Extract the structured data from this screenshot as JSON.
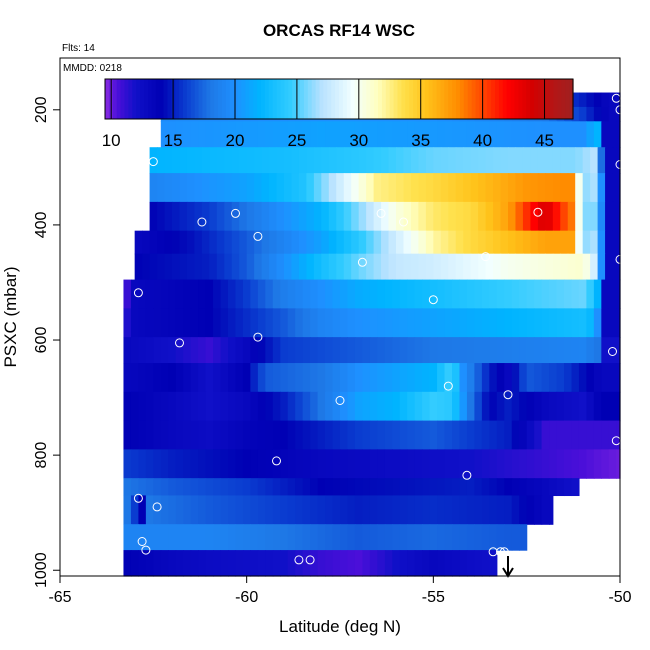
{
  "chart_data": {
    "type": "heatmap",
    "title": "ORCAS RF14 WSC",
    "annotations": {
      "flights": "Flts: 14",
      "date": "MMDD: 0218"
    },
    "xlabel": "Latitude (deg N)",
    "ylabel": "PSXC (mbar)",
    "xlim": [
      -65,
      -50
    ],
    "ylim": [
      1010,
      110
    ],
    "y_reversed": true,
    "x_ticks": [
      -65,
      -60,
      -55,
      -50
    ],
    "y_ticks": [
      200,
      400,
      600,
      800,
      1000
    ],
    "x_tick_labels": [
      "-65",
      "-60",
      "-55",
      "-50"
    ],
    "y_tick_labels": [
      "200",
      "400",
      "600",
      "800",
      "1000"
    ],
    "colorbar": {
      "range": [
        9.5,
        47.3
      ],
      "ticks": [
        10,
        15,
        20,
        25,
        30,
        35,
        40,
        45
      ],
      "tick_labels": [
        "10",
        "15",
        "20",
        "25",
        "30",
        "35",
        "40",
        "45"
      ],
      "stops": [
        [
          9.5,
          "#8a2be2"
        ],
        [
          10.5,
          "#4b0fd9"
        ],
        [
          12,
          "#1010c8"
        ],
        [
          14,
          "#0000b4"
        ],
        [
          16,
          "#0a3cd0"
        ],
        [
          18,
          "#1e78e6"
        ],
        [
          20,
          "#1e90ff"
        ],
        [
          22,
          "#00b4ff"
        ],
        [
          24.5,
          "#33ccff"
        ],
        [
          27,
          "#b8e2ff"
        ],
        [
          29.5,
          "#f2ffff"
        ],
        [
          31.5,
          "#ffffc0"
        ],
        [
          33.5,
          "#ffe14d"
        ],
        [
          35.5,
          "#ffc21a"
        ],
        [
          38,
          "#ff8c00"
        ],
        [
          40,
          "#ff4500"
        ],
        [
          42,
          "#ff0000"
        ],
        [
          44,
          "#d40000"
        ],
        [
          46,
          "#b01818"
        ],
        [
          47.3,
          "#a02020"
        ]
      ]
    },
    "rows": [
      {
        "p": [
          170,
          195
        ],
        "x": [
          -62.1,
          -50
        ],
        "v": [
          [
            -62.1,
            19
          ],
          [
            -58,
            19.5
          ],
          [
            -55,
            19
          ],
          [
            -52,
            17
          ],
          [
            -51,
            15
          ],
          [
            -50.3,
            13
          ]
        ]
      },
      {
        "p": [
          195,
          220
        ],
        "x": [
          -62.3,
          -50
        ],
        "v": [
          [
            -62.3,
            19.5
          ],
          [
            -58,
            20
          ],
          [
            -55,
            20
          ],
          [
            -52,
            18
          ],
          [
            -51,
            16
          ],
          [
            -50.3,
            13
          ]
        ]
      },
      {
        "p": [
          220,
          265
        ],
        "x": [
          -62.3,
          -50
        ],
        "v": [
          [
            -62.3,
            20
          ],
          [
            -58,
            21
          ],
          [
            -55,
            20.5
          ],
          [
            -52,
            20
          ],
          [
            -51,
            20
          ],
          [
            -50.6,
            22
          ],
          [
            -50.4,
            13
          ]
        ]
      },
      {
        "p": [
          265,
          310
        ],
        "x": [
          -62.6,
          -50
        ],
        "v": [
          [
            -62.6,
            22
          ],
          [
            -59,
            23
          ],
          [
            -57,
            24
          ],
          [
            -55,
            25.5
          ],
          [
            -53,
            26
          ],
          [
            -51.2,
            26
          ],
          [
            -50.7,
            27
          ],
          [
            -50.4,
            13
          ]
        ]
      },
      {
        "p": [
          310,
          360
        ],
        "x": [
          -62.6,
          -50
        ],
        "v": [
          [
            -62.6,
            19
          ],
          [
            -60,
            21
          ],
          [
            -58.5,
            23.5
          ],
          [
            -57.5,
            28
          ],
          [
            -56.5,
            32.5
          ],
          [
            -55,
            34
          ],
          [
            -53.5,
            36
          ],
          [
            -52.5,
            37.5
          ],
          [
            -51.5,
            38
          ],
          [
            -51.2,
            38
          ],
          [
            -51.05,
            26
          ],
          [
            -50.6,
            27
          ],
          [
            -50.4,
            13
          ]
        ]
      },
      {
        "p": [
          360,
          410
        ],
        "x": [
          -62.6,
          -50
        ],
        "v": [
          [
            -62.6,
            14
          ],
          [
            -61,
            16
          ],
          [
            -59.5,
            19
          ],
          [
            -58,
            22
          ],
          [
            -57,
            26
          ],
          [
            -56,
            30.5
          ],
          [
            -55,
            33
          ],
          [
            -54,
            34
          ],
          [
            -53,
            37
          ],
          [
            -52.6,
            40
          ],
          [
            -52,
            44
          ],
          [
            -51.5,
            40
          ],
          [
            -51.2,
            38
          ],
          [
            -51.05,
            26
          ],
          [
            -50.6,
            26
          ],
          [
            -50.4,
            13
          ]
        ]
      },
      {
        "p": [
          410,
          450
        ],
        "x": [
          -63,
          -50
        ],
        "v": [
          [
            -63,
            13
          ],
          [
            -61.5,
            14.5
          ],
          [
            -60,
            17
          ],
          [
            -58,
            21
          ],
          [
            -57,
            24
          ],
          [
            -56,
            28
          ],
          [
            -55,
            32
          ],
          [
            -54,
            34
          ],
          [
            -53,
            35.5
          ],
          [
            -52,
            37
          ],
          [
            -51.2,
            37
          ],
          [
            -51.05,
            26
          ],
          [
            -50.6,
            27
          ],
          [
            -50.4,
            13
          ]
        ]
      },
      {
        "p": [
          450,
          495
        ],
        "x": [
          -63,
          -50
        ],
        "v": [
          [
            -63,
            14
          ],
          [
            -61,
            15
          ],
          [
            -60,
            17
          ],
          [
            -59,
            20
          ],
          [
            -58,
            23
          ],
          [
            -57,
            25.5
          ],
          [
            -56,
            27.5
          ],
          [
            -55,
            28
          ],
          [
            -54,
            29
          ],
          [
            -53,
            30
          ],
          [
            -51,
            31
          ],
          [
            -50.85,
            30
          ],
          [
            -50.6,
            27
          ],
          [
            -50.4,
            13
          ]
        ]
      },
      {
        "p": [
          495,
          545
        ],
        "x": [
          -63.3,
          -50
        ],
        "v": [
          [
            -63.3,
            10
          ],
          [
            -63,
            13
          ],
          [
            -61,
            14
          ],
          [
            -60,
            16
          ],
          [
            -59,
            18.5
          ],
          [
            -58,
            20
          ],
          [
            -57,
            21.5
          ],
          [
            -55,
            23
          ],
          [
            -53,
            24.5
          ],
          [
            -51,
            25.5
          ],
          [
            -50.85,
            25
          ],
          [
            -50.6,
            22
          ],
          [
            -50.4,
            13
          ]
        ]
      },
      {
        "p": [
          545,
          595
        ],
        "x": [
          -63.3,
          -50
        ],
        "v": [
          [
            -63.3,
            11
          ],
          [
            -63,
            13
          ],
          [
            -61,
            14
          ],
          [
            -60,
            15.5
          ],
          [
            -59,
            17
          ],
          [
            -58,
            19
          ],
          [
            -57,
            20
          ],
          [
            -55,
            21
          ],
          [
            -53,
            22
          ],
          [
            -51,
            23
          ],
          [
            -50.85,
            23
          ],
          [
            -50.6,
            20
          ],
          [
            -50.4,
            13
          ]
        ]
      },
      {
        "p": [
          595,
          640
        ],
        "x": [
          -63.3,
          -50
        ],
        "v": [
          [
            -63.3,
            13
          ],
          [
            -62,
            12
          ],
          [
            -61,
            11
          ],
          [
            -60,
            13
          ],
          [
            -59,
            16
          ],
          [
            -57,
            17
          ],
          [
            -55,
            18
          ],
          [
            -53,
            18.5
          ],
          [
            -51,
            19
          ],
          [
            -50.6,
            18
          ],
          [
            -50.4,
            12
          ]
        ]
      },
      {
        "p": [
          640,
          690
        ],
        "x": [
          -63.3,
          -50
        ],
        "v": [
          [
            -63.3,
            13
          ],
          [
            -62,
            14
          ],
          [
            -61,
            12
          ],
          [
            -60,
            14
          ],
          [
            -59.5,
            17
          ],
          [
            -58,
            18
          ],
          [
            -57,
            20
          ],
          [
            -56,
            21
          ],
          [
            -55,
            22
          ],
          [
            -54.5,
            25
          ],
          [
            -54.2,
            20
          ],
          [
            -53.5,
            15
          ],
          [
            -53,
            13
          ],
          [
            -52.5,
            17
          ],
          [
            -51.5,
            16
          ],
          [
            -50.5,
            13
          ]
        ]
      },
      {
        "p": [
          690,
          740
        ],
        "x": [
          -63.3,
          -50
        ],
        "v": [
          [
            -63.3,
            14
          ],
          [
            -62,
            13
          ],
          [
            -61,
            12
          ],
          [
            -60,
            13
          ],
          [
            -59,
            15
          ],
          [
            -58,
            18
          ],
          [
            -57,
            21
          ],
          [
            -56,
            22
          ],
          [
            -55,
            24.5
          ],
          [
            -54.5,
            24
          ],
          [
            -54,
            18
          ],
          [
            -53.5,
            14
          ],
          [
            -53,
            15
          ],
          [
            -52,
            13
          ],
          [
            -51,
            12
          ],
          [
            -50.5,
            14
          ]
        ]
      },
      {
        "p": [
          740,
          790
        ],
        "x": [
          -63.3,
          -50
        ],
        "v": [
          [
            -63.3,
            14
          ],
          [
            -62,
            13
          ],
          [
            -61,
            12.5
          ],
          [
            -60,
            13.5
          ],
          [
            -59,
            14
          ],
          [
            -57,
            16
          ],
          [
            -55,
            17
          ],
          [
            -53,
            15
          ],
          [
            -52,
            11
          ],
          [
            -51,
            11
          ],
          [
            -50.2,
            11
          ]
        ]
      },
      {
        "p": [
          790,
          840
        ],
        "x": [
          -63.3,
          -50
        ],
        "v": [
          [
            -63.3,
            16
          ],
          [
            -62,
            15
          ],
          [
            -60,
            14
          ],
          [
            -58,
            13
          ],
          [
            -56,
            12.5
          ],
          [
            -54,
            12
          ],
          [
            -52,
            11
          ],
          [
            -51,
            10.5
          ],
          [
            -50,
            10
          ]
        ]
      },
      {
        "p": [
          840,
          870
        ],
        "x": [
          -63.3,
          -51.1
        ],
        "v": [
          [
            -63.3,
            18
          ],
          [
            -62,
            17
          ],
          [
            -60,
            16
          ],
          [
            -58,
            14
          ],
          [
            -56,
            14.5
          ],
          [
            -54,
            15
          ],
          [
            -52,
            13
          ],
          [
            -51.2,
            12
          ]
        ]
      },
      {
        "p": [
          870,
          920
        ],
        "x": [
          -63.3,
          -51.8
        ],
        "v": [
          [
            -63.3,
            19
          ],
          [
            -62.8,
            14
          ],
          [
            -62.6,
            18
          ],
          [
            -61,
            17
          ],
          [
            -59,
            16
          ],
          [
            -57,
            15
          ],
          [
            -55,
            15.5
          ],
          [
            -53,
            15
          ],
          [
            -52,
            13
          ]
        ]
      },
      {
        "p": [
          920,
          965
        ],
        "x": [
          -63.3,
          -52.5
        ],
        "v": [
          [
            -63.3,
            19
          ],
          [
            -61,
            19
          ],
          [
            -59,
            18
          ],
          [
            -57,
            17
          ],
          [
            -55,
            17.5
          ],
          [
            -53,
            17
          ]
        ]
      },
      {
        "p": [
          965,
          1010
        ],
        "x": [
          -63.3,
          -53.3
        ],
        "v": [
          [
            -63.3,
            14
          ],
          [
            -62,
            13
          ],
          [
            -61,
            12.5
          ],
          [
            -59,
            12
          ],
          [
            -58,
            11
          ],
          [
            -57,
            10.5
          ],
          [
            -56,
            12
          ],
          [
            -55,
            13
          ],
          [
            -53.5,
            12
          ]
        ]
      }
    ],
    "points": [
      [
        -62,
        180
      ],
      [
        -61.8,
        180
      ],
      [
        -60.4,
        180
      ],
      [
        -57.6,
        180
      ],
      [
        -55.5,
        180
      ],
      [
        -50.1,
        180
      ],
      [
        -50,
        200
      ],
      [
        -62.5,
        290
      ],
      [
        -50,
        295
      ],
      [
        -61.2,
        395
      ],
      [
        -60.3,
        380
      ],
      [
        -59.7,
        420
      ],
      [
        -56.4,
        380
      ],
      [
        -55.8,
        395
      ],
      [
        -52.2,
        378
      ],
      [
        -56.9,
        465
      ],
      [
        -53.6,
        455
      ],
      [
        -50,
        460
      ],
      [
        -62.9,
        518
      ],
      [
        -55,
        530
      ],
      [
        -61.8,
        605
      ],
      [
        -59.7,
        595
      ],
      [
        -50.2,
        620
      ],
      [
        -57.5,
        705
      ],
      [
        -54.6,
        680
      ],
      [
        -53,
        695
      ],
      [
        -50.1,
        775
      ],
      [
        -59.2,
        810
      ],
      [
        -54.1,
        835
      ],
      [
        -62.9,
        875
      ],
      [
        -62.4,
        890
      ],
      [
        -62.8,
        950
      ],
      [
        -62.7,
        965
      ],
      [
        -58.6,
        982
      ],
      [
        -58.3,
        982
      ],
      [
        -53.4,
        968
      ],
      [
        -53.2,
        968
      ],
      [
        -53.1,
        968
      ]
    ],
    "marker": {
      "x": -53,
      "direction": "down"
    }
  }
}
